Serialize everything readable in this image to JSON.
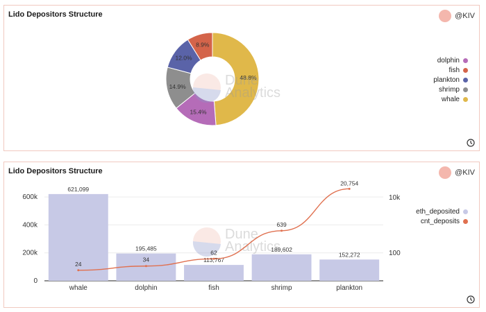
{
  "panels": {
    "top": {
      "title": "Lido Depositors Structure",
      "author": "@KIV"
    },
    "bottom": {
      "title": "Lido Depositors Structure",
      "author": "@KIV"
    }
  },
  "watermark": {
    "line1": "Dune",
    "line2": "Analytics"
  },
  "colors": {
    "dolphin": "#b56cb8",
    "fish": "#d4644a",
    "plankton": "#5a63a8",
    "shrimp": "#8e8e8e",
    "whale": "#e0b84a",
    "bar": "#c7c9e6",
    "line": "#e0704f"
  },
  "chart_data": [
    {
      "type": "pie",
      "donut": true,
      "title": "Lido Depositors Structure",
      "legend_position": "right",
      "slices": [
        {
          "label": "dolphin",
          "value": 15.4,
          "display": "15.4%"
        },
        {
          "label": "fish",
          "value": 8.9,
          "display": "8.9%"
        },
        {
          "label": "plankton",
          "value": 12.0,
          "display": "12.0%"
        },
        {
          "label": "shrimp",
          "value": 14.9,
          "display": "14.9%"
        },
        {
          "label": "whale",
          "value": 48.8,
          "display": "48.8%"
        }
      ]
    },
    {
      "type": "bar",
      "title": "Lido Depositors Structure",
      "categories": [
        "whale",
        "dolphin",
        "fish",
        "shrimp",
        "plankton"
      ],
      "legend_position": "right",
      "series": [
        {
          "name": "eth_deposited",
          "type": "bar",
          "axis": "left",
          "values": [
            621099,
            195485,
            113767,
            189602,
            152272
          ],
          "labels": [
            "621,099",
            "195,485",
            "113,767",
            "189,602",
            "152,272"
          ]
        },
        {
          "name": "cnt_deposits",
          "type": "line",
          "axis": "right",
          "scale": "log",
          "values": [
            24,
            34,
            62,
            639,
            20754
          ],
          "labels": [
            "24",
            "34",
            "62",
            "639",
            "20,754"
          ]
        }
      ],
      "y_left": {
        "ylim": [
          0,
          700000
        ],
        "ticks": [
          0,
          200000,
          400000,
          600000
        ],
        "tick_labels": [
          "0",
          "200k",
          "400k",
          "600k"
        ],
        "grid": true
      },
      "y_right": {
        "scale": "log",
        "ticks": [
          100,
          10000
        ],
        "tick_labels": [
          "100",
          "10k"
        ]
      }
    }
  ]
}
